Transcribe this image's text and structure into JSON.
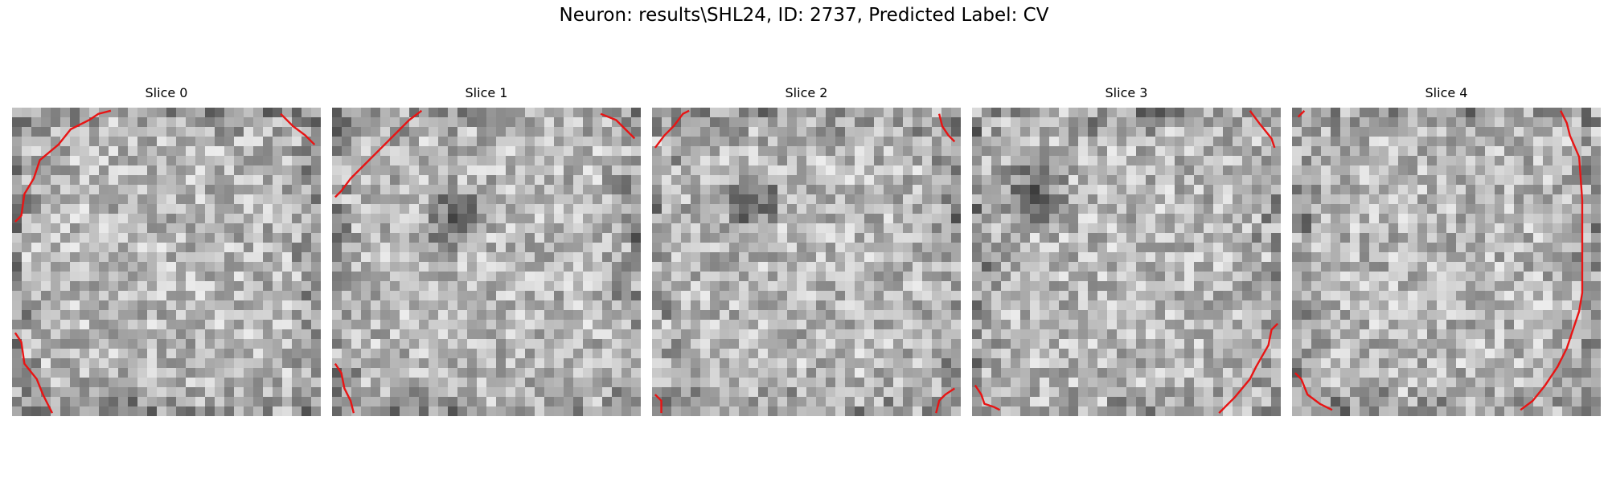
{
  "figure": {
    "title": "Neuron: results\\SHL24, ID: 2737, Predicted Label: CV"
  },
  "panels": [
    {
      "title": "Slice 0",
      "dark_center": null,
      "contours": [
        [
          [
            0.01,
            0.37
          ],
          [
            0.03,
            0.35
          ],
          [
            0.04,
            0.28
          ],
          [
            0.07,
            0.23
          ],
          [
            0.09,
            0.17
          ],
          [
            0.15,
            0.12
          ],
          [
            0.19,
            0.07
          ],
          [
            0.25,
            0.04
          ],
          [
            0.28,
            0.02
          ],
          [
            0.32,
            0.01
          ]
        ],
        [
          [
            0.87,
            0.02
          ],
          [
            0.91,
            0.06
          ],
          [
            0.95,
            0.09
          ],
          [
            0.98,
            0.12
          ]
        ],
        [
          [
            0.01,
            0.73
          ],
          [
            0.03,
            0.76
          ],
          [
            0.04,
            0.83
          ],
          [
            0.08,
            0.88
          ],
          [
            0.1,
            0.93
          ],
          [
            0.12,
            0.97
          ],
          [
            0.13,
            0.99
          ]
        ]
      ]
    },
    {
      "title": "Slice 1",
      "dark_center": [
        0.4,
        0.36
      ],
      "contours": [
        [
          [
            0.01,
            0.29
          ],
          [
            0.03,
            0.27
          ],
          [
            0.06,
            0.23
          ],
          [
            0.11,
            0.18
          ],
          [
            0.16,
            0.13
          ],
          [
            0.21,
            0.08
          ],
          [
            0.25,
            0.04
          ],
          [
            0.29,
            0.01
          ]
        ],
        [
          [
            0.87,
            0.02
          ],
          [
            0.92,
            0.04
          ],
          [
            0.95,
            0.07
          ],
          [
            0.98,
            0.1
          ]
        ],
        [
          [
            0.01,
            0.83
          ],
          [
            0.03,
            0.86
          ],
          [
            0.04,
            0.91
          ],
          [
            0.06,
            0.95
          ],
          [
            0.07,
            0.99
          ]
        ]
      ]
    },
    {
      "title": "Slice 2",
      "dark_center": [
        0.32,
        0.3
      ],
      "contours": [
        [
          [
            0.01,
            0.13
          ],
          [
            0.04,
            0.09
          ],
          [
            0.07,
            0.06
          ],
          [
            0.1,
            0.02
          ],
          [
            0.12,
            0.01
          ]
        ],
        [
          [
            0.93,
            0.02
          ],
          [
            0.94,
            0.06
          ],
          [
            0.96,
            0.09
          ],
          [
            0.98,
            0.11
          ]
        ],
        [
          [
            0.01,
            0.93
          ],
          [
            0.03,
            0.95
          ],
          [
            0.03,
            0.99
          ]
        ],
        [
          [
            0.92,
            0.99
          ],
          [
            0.93,
            0.95
          ],
          [
            0.95,
            0.93
          ],
          [
            0.98,
            0.91
          ]
        ]
      ]
    },
    {
      "title": "Slice 3",
      "dark_center": [
        0.2,
        0.28
      ],
      "contours": [
        [
          [
            0.9,
            0.01
          ],
          [
            0.93,
            0.05
          ],
          [
            0.97,
            0.1
          ],
          [
            0.98,
            0.13
          ]
        ],
        [
          [
            0.8,
            0.99
          ],
          [
            0.85,
            0.94
          ],
          [
            0.9,
            0.88
          ],
          [
            0.92,
            0.84
          ],
          [
            0.96,
            0.77
          ],
          [
            0.97,
            0.72
          ],
          [
            0.99,
            0.7
          ]
        ],
        [
          [
            0.01,
            0.9
          ],
          [
            0.03,
            0.93
          ],
          [
            0.04,
            0.96
          ],
          [
            0.07,
            0.97
          ],
          [
            0.09,
            0.98
          ]
        ]
      ]
    },
    {
      "title": "Slice 4",
      "dark_center": null,
      "contours": [
        [
          [
            0.02,
            0.03
          ],
          [
            0.04,
            0.01
          ]
        ],
        [
          [
            0.87,
            0.01
          ],
          [
            0.89,
            0.05
          ],
          [
            0.9,
            0.09
          ],
          [
            0.93,
            0.16
          ],
          [
            0.94,
            0.3
          ],
          [
            0.94,
            0.45
          ],
          [
            0.94,
            0.6
          ],
          [
            0.93,
            0.66
          ],
          [
            0.91,
            0.72
          ],
          [
            0.89,
            0.78
          ],
          [
            0.86,
            0.84
          ],
          [
            0.82,
            0.9
          ],
          [
            0.78,
            0.95
          ],
          [
            0.74,
            0.98
          ]
        ],
        [
          [
            0.01,
            0.86
          ],
          [
            0.03,
            0.88
          ],
          [
            0.05,
            0.93
          ],
          [
            0.09,
            0.96
          ],
          [
            0.13,
            0.98
          ]
        ]
      ]
    }
  ]
}
